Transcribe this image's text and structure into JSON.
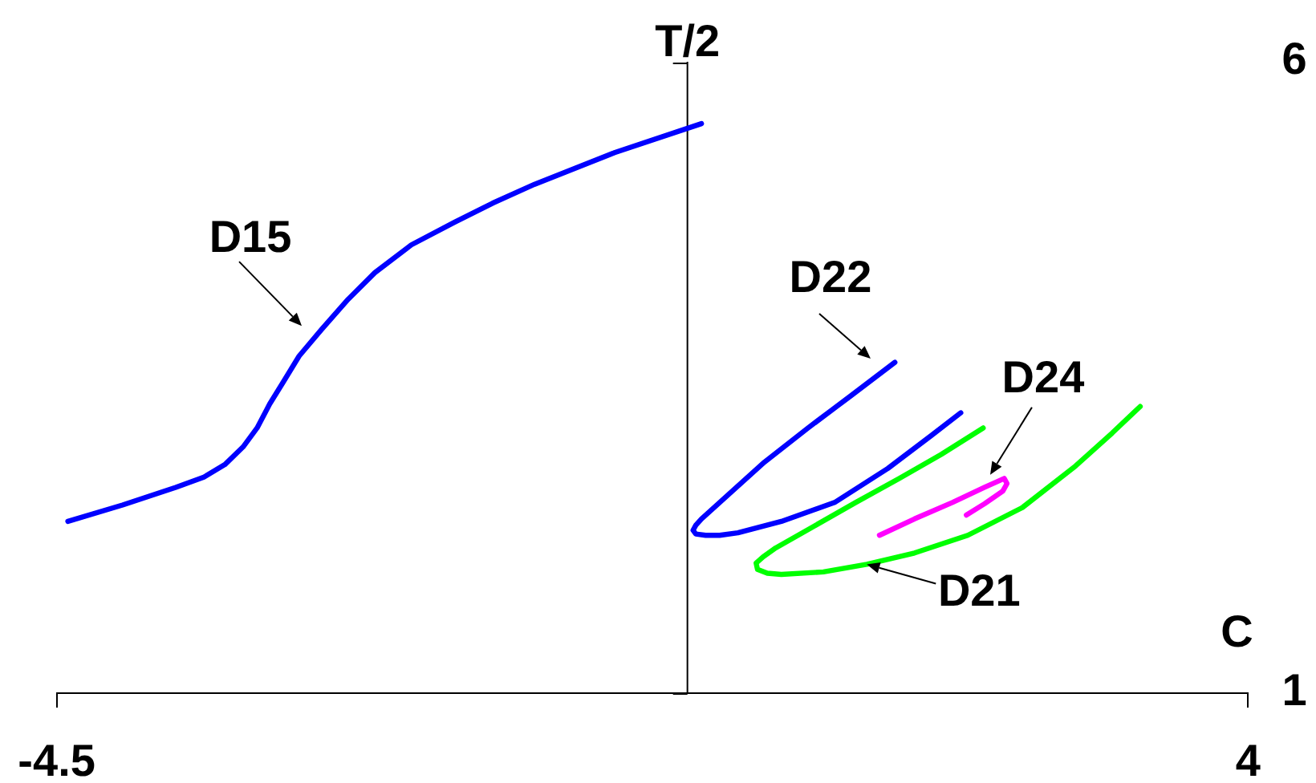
{
  "chart_data": {
    "type": "line",
    "xlabel": "C",
    "ylabel": "T/2",
    "xlim": [
      -4.5,
      4
    ],
    "xticks": [
      -4.5,
      4
    ],
    "ylim": [
      1,
      6
    ],
    "yticks": [
      1,
      6
    ],
    "marker": "none",
    "series": [
      {
        "color": "#0000ff",
        "x": [
          -4.42,
          -4.03,
          -3.65,
          -3.45,
          -3.3,
          -3.17,
          -3.07,
          -2.98,
          -2.88,
          -2.77,
          -2.61,
          -2.42,
          -2.23,
          -1.97,
          -1.66,
          -1.39,
          -1.09,
          -0.52,
          0.1
        ],
        "values": [
          2.36,
          2.49,
          2.63,
          2.71,
          2.81,
          2.95,
          3.1,
          3.29,
          3.47,
          3.67,
          3.88,
          4.12,
          4.33,
          4.55,
          4.73,
          4.88,
          5.03,
          5.28,
          5.51
        ]
      },
      {
        "color": "#0000ff",
        "x": [
          1.48,
          1.16,
          0.86,
          0.55,
          0.29,
          0.1,
          0.06,
          0.04,
          0.06,
          0.13,
          0.23,
          0.36,
          0.67,
          1.05,
          1.43,
          1.74,
          1.95
        ],
        "values": [
          3.62,
          3.35,
          3.1,
          2.83,
          2.57,
          2.38,
          2.33,
          2.29,
          2.26,
          2.25,
          2.25,
          2.27,
          2.36,
          2.51,
          2.78,
          3.04,
          3.22
        ]
      },
      {
        "color": "#00ff00",
        "x": [
          2.11,
          1.81,
          1.51,
          1.2,
          0.9,
          0.63,
          0.54,
          0.49,
          0.5,
          0.57,
          0.67,
          0.97,
          1.28,
          1.62,
          2.0,
          2.39,
          2.77,
          3.03,
          3.23
        ],
        "values": [
          3.1,
          2.89,
          2.7,
          2.51,
          2.32,
          2.15,
          2.08,
          2.03,
          1.98,
          1.95,
          1.94,
          1.96,
          2.02,
          2.11,
          2.25,
          2.47,
          2.8,
          3.06,
          3.27
        ]
      },
      {
        "color": "#ff00ff",
        "x": [
          1.37,
          1.62,
          1.89,
          2.12,
          2.2,
          2.26,
          2.28,
          2.25,
          2.12,
          1.99
        ],
        "values": [
          2.25,
          2.38,
          2.51,
          2.63,
          2.67,
          2.7,
          2.66,
          2.6,
          2.5,
          2.41
        ]
      }
    ],
    "annotations": [
      {
        "text": "D15",
        "x": -2.66,
        "y": 3.82
      },
      {
        "text": "D22",
        "x": 1.41,
        "y": 3.56
      },
      {
        "text": "D24",
        "x": 2.16,
        "y": 2.73
      },
      {
        "text": "D21",
        "x": 1.28,
        "y": 2.02
      }
    ]
  }
}
